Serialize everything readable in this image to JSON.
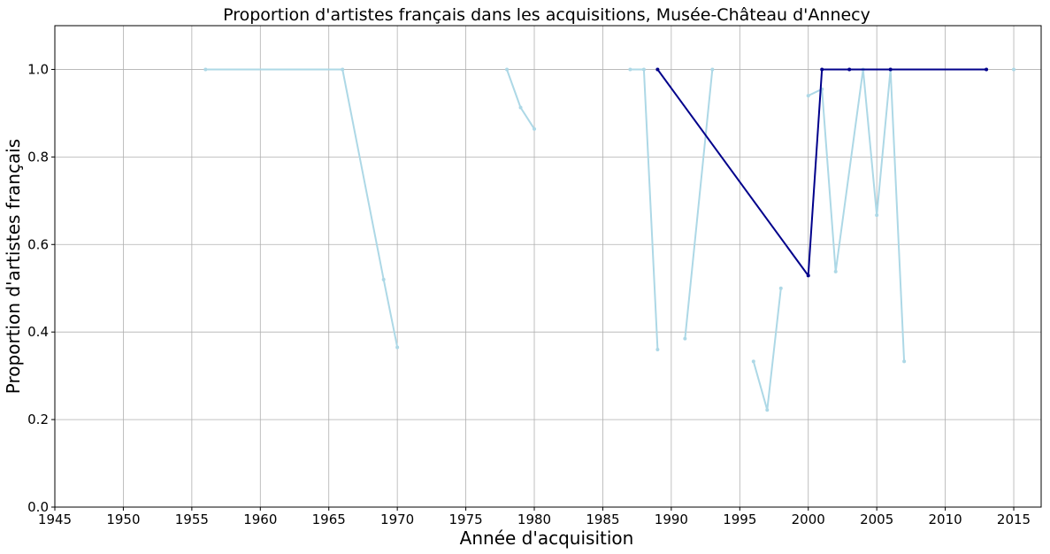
{
  "chart_data": {
    "type": "line",
    "title": "Proportion d'artistes français dans les acquisitions, Musée-Château d'Annecy",
    "xlabel": "Année d'acquisition",
    "ylabel": "Proportion d'artistes français",
    "xlim": [
      1945,
      2017
    ],
    "ylim": [
      0.0,
      1.1
    ],
    "xticks": [
      1945,
      1950,
      1955,
      1960,
      1965,
      1970,
      1975,
      1980,
      1985,
      1990,
      1995,
      2000,
      2005,
      2010,
      2015
    ],
    "yticks": [
      0.0,
      0.2,
      0.4,
      0.6,
      0.8,
      1.0
    ],
    "ytick_labels": [
      "0.0",
      "0.2",
      "0.4",
      "0.6",
      "0.8",
      "1.0"
    ],
    "grid": true,
    "series": [
      {
        "color": "#add8e6",
        "segments": [
          {
            "x": [
              1956,
              1966,
              1969,
              1970
            ],
            "y": [
              1.0,
              1.0,
              0.52,
              0.365
            ]
          },
          {
            "x": [
              1978,
              1979,
              1980
            ],
            "y": [
              1.0,
              0.913,
              0.864
            ]
          },
          {
            "x": [
              1987,
              1988,
              1989
            ],
            "y": [
              1.0,
              1.0,
              0.36
            ]
          },
          {
            "x": [
              1991,
              1993
            ],
            "y": [
              0.385,
              1.0
            ]
          },
          {
            "x": [
              1996,
              1997,
              1998
            ],
            "y": [
              0.333,
              0.222,
              0.5
            ]
          },
          {
            "x": [
              2000,
              2001,
              2002,
              2004,
              2005,
              2006,
              2007
            ],
            "y": [
              0.94,
              0.955,
              0.538,
              1.0,
              0.667,
              1.0,
              0.333
            ]
          },
          {
            "x": [
              2015
            ],
            "y": [
              1.0
            ]
          }
        ]
      },
      {
        "color": "#00008b",
        "segments": [
          {
            "x": [
              1989,
              2000,
              2001,
              2003,
              2006,
              2013
            ],
            "y": [
              1.0,
              0.529,
              1.0,
              1.0,
              1.0,
              1.0
            ]
          }
        ]
      }
    ]
  }
}
